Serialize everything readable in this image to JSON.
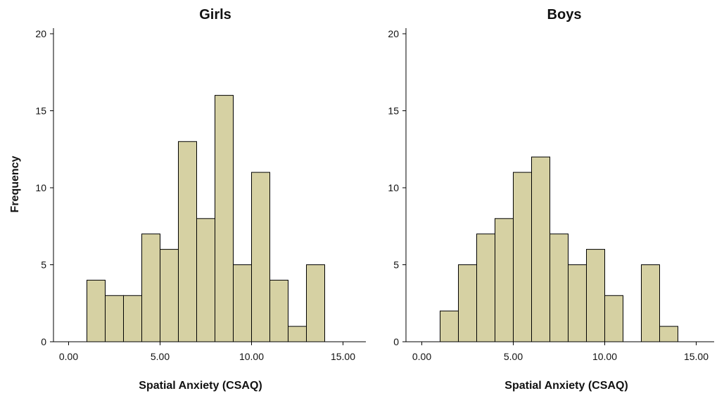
{
  "colors": {
    "bar_fill": "#d6d1a3",
    "bar_stroke": "#000000",
    "axis": "#000000"
  },
  "chart_data": [
    {
      "type": "bar",
      "title": "Girls",
      "xlabel": "Spatial Anxiety (CSAQ)",
      "ylabel": "Frequency",
      "bin_width": 1,
      "x_ticks": [
        "0.00",
        "5.00",
        "10.00",
        "15.00"
      ],
      "x_tick_values": [
        0,
        5,
        10,
        15
      ],
      "y_ticks": [
        "0",
        "5",
        "10",
        "15",
        "20"
      ],
      "y_tick_values": [
        0,
        5,
        10,
        15,
        20
      ],
      "xlim": [
        -0.3,
        16
      ],
      "ylim": [
        0,
        20
      ],
      "bins": [
        {
          "x0": 1,
          "x1": 2,
          "count": 4
        },
        {
          "x0": 2,
          "x1": 3,
          "count": 3
        },
        {
          "x0": 3,
          "x1": 4,
          "count": 3
        },
        {
          "x0": 4,
          "x1": 5,
          "count": 7
        },
        {
          "x0": 5,
          "x1": 6,
          "count": 6
        },
        {
          "x0": 6,
          "x1": 7,
          "count": 13
        },
        {
          "x0": 7,
          "x1": 8,
          "count": 8
        },
        {
          "x0": 8,
          "x1": 9,
          "count": 16
        },
        {
          "x0": 9,
          "x1": 10,
          "count": 5
        },
        {
          "x0": 10,
          "x1": 11,
          "count": 11
        },
        {
          "x0": 11,
          "x1": 12,
          "count": 4
        },
        {
          "x0": 12,
          "x1": 13,
          "count": 1
        },
        {
          "x0": 13,
          "x1": 14,
          "count": 5
        }
      ],
      "grid": false
    },
    {
      "type": "bar",
      "title": "Boys",
      "xlabel": "Spatial Anxiety (CSAQ)",
      "ylabel": "",
      "bin_width": 1,
      "x_ticks": [
        "0.00",
        "5.00",
        "10.00",
        "15.00"
      ],
      "x_tick_values": [
        0,
        5,
        10,
        15
      ],
      "y_ticks": [
        "0",
        "5",
        "10",
        "15",
        "20"
      ],
      "y_tick_values": [
        0,
        5,
        10,
        15,
        20
      ],
      "xlim": [
        -0.3,
        16
      ],
      "ylim": [
        0,
        20
      ],
      "bins": [
        {
          "x0": 1,
          "x1": 2,
          "count": 2
        },
        {
          "x0": 2,
          "x1": 3,
          "count": 5
        },
        {
          "x0": 3,
          "x1": 4,
          "count": 7
        },
        {
          "x0": 4,
          "x1": 5,
          "count": 8
        },
        {
          "x0": 5,
          "x1": 6,
          "count": 11
        },
        {
          "x0": 6,
          "x1": 7,
          "count": 12
        },
        {
          "x0": 7,
          "x1": 8,
          "count": 7
        },
        {
          "x0": 8,
          "x1": 9,
          "count": 5
        },
        {
          "x0": 9,
          "x1": 10,
          "count": 6
        },
        {
          "x0": 10,
          "x1": 11,
          "count": 3
        },
        {
          "x0": 12,
          "x1": 13,
          "count": 5
        },
        {
          "x0": 13,
          "x1": 14,
          "count": 1
        }
      ],
      "grid": false
    }
  ]
}
